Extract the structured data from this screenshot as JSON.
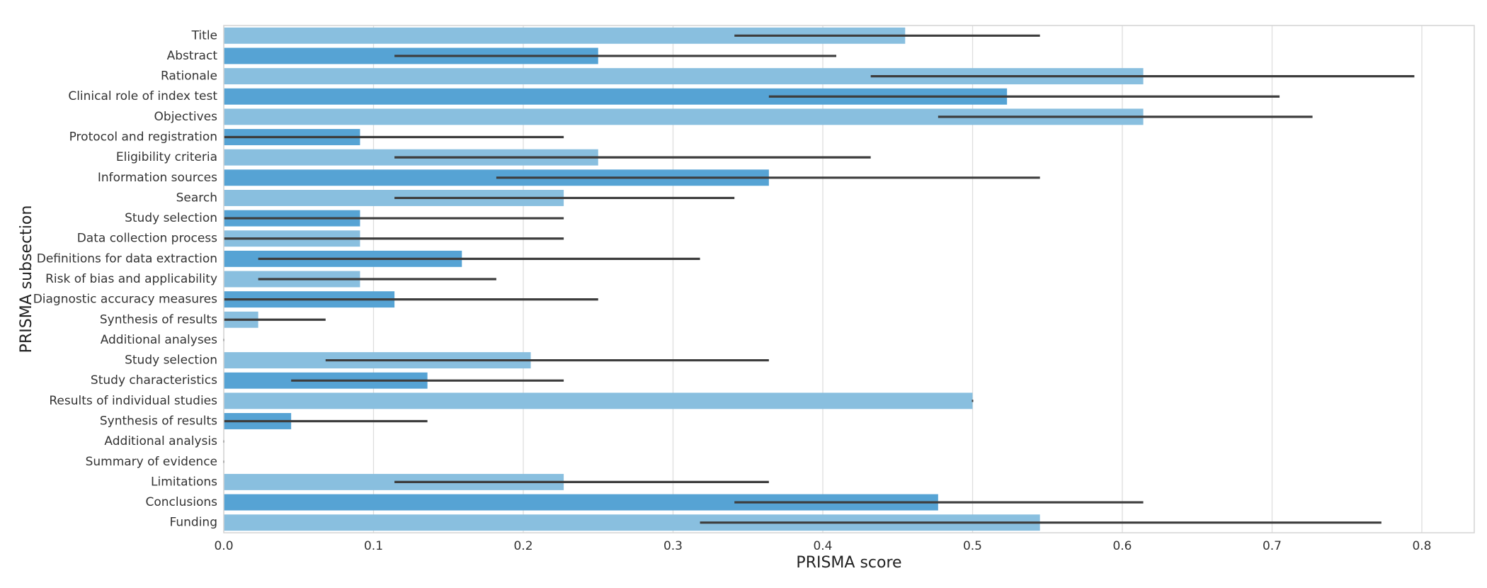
{
  "chart_data": {
    "type": "bar",
    "orientation": "horizontal",
    "xlabel": "PRISMA score",
    "ylabel": "PRISMA subsection",
    "xlim": [
      0,
      0.835
    ],
    "xticks": [
      0.0,
      0.1,
      0.2,
      0.3,
      0.4,
      0.5,
      0.6,
      0.7,
      0.8
    ],
    "xtick_labels": [
      "0.0",
      "0.1",
      "0.2",
      "0.3",
      "0.4",
      "0.5",
      "0.6",
      "0.7",
      "0.8"
    ],
    "grid": "vertical",
    "categories": [
      "Title",
      "Abstract",
      "Rationale",
      "Clinical role of index test",
      "Objectives",
      "Protocol and registration",
      "Eligibility criteria",
      "Information sources",
      "Search",
      "Study selection",
      "Data collection process",
      "Definitions for data extraction",
      "Risk of bias and applicability",
      "Diagnostic accuracy measures",
      "Synthesis of results",
      "Additional analyses",
      "Study selection",
      "Study characteristics",
      "Results of individual studies",
      "Synthesis of results",
      "Additional analysis",
      "Summary of evidence",
      "Limitations",
      "Conclusions",
      "Funding"
    ],
    "values": [
      0.455,
      0.25,
      0.614,
      0.523,
      0.614,
      0.091,
      0.25,
      0.364,
      0.227,
      0.091,
      0.091,
      0.159,
      0.091,
      0.114,
      0.023,
      0.0,
      0.205,
      0.136,
      0.5,
      0.045,
      0.0,
      0.0,
      0.227,
      0.477,
      0.545
    ],
    "error_low": [
      0.341,
      0.114,
      0.432,
      0.364,
      0.477,
      0.0,
      0.114,
      0.182,
      0.114,
      0.0,
      0.0,
      0.023,
      0.023,
      0.0,
      0.0,
      0.0,
      0.068,
      0.045,
      0.5,
      0.0,
      0.0,
      0.0,
      0.114,
      0.341,
      0.318
    ],
    "error_high": [
      0.545,
      0.409,
      0.795,
      0.705,
      0.727,
      0.227,
      0.432,
      0.545,
      0.341,
      0.227,
      0.227,
      0.318,
      0.182,
      0.25,
      0.068,
      0.0,
      0.364,
      0.227,
      0.5,
      0.136,
      0.0,
      0.0,
      0.364,
      0.614,
      0.773
    ],
    "colors": {
      "bar_light": "#89bfdf",
      "bar_dark": "#56a3d4",
      "error_bar": "#3d3d3d",
      "grid": "#dedede",
      "frame": "#d4d4d4"
    }
  }
}
